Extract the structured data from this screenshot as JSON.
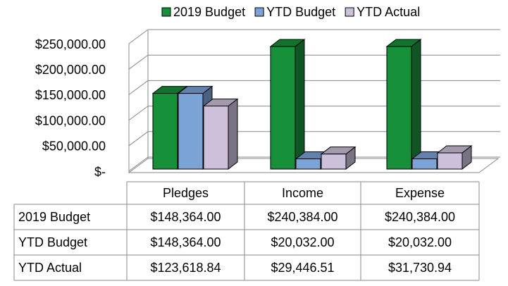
{
  "chart_data": {
    "type": "bar3d",
    "categories": [
      "Pledges",
      "Income",
      "Expense"
    ],
    "series": [
      {
        "name": "2019 Budget",
        "color": "#17903a",
        "values": [
          148364.0,
          240384.0,
          240384.0
        ],
        "value_labels": [
          "$148,364.00",
          "$240,384.00",
          "$240,384.00"
        ]
      },
      {
        "name": "YTD Budget",
        "color": "#7ba3d6",
        "values": [
          148364.0,
          20032.0,
          20032.0
        ],
        "value_labels": [
          "$148,364.00",
          "$20,032.00",
          "$20,032.00"
        ]
      },
      {
        "name": "YTD Actual",
        "color": "#ccc0da",
        "values": [
          123618.84,
          29446.51,
          31730.94
        ],
        "value_labels": [
          "$123,618.84",
          "$29,446.51",
          "$31,730.94"
        ]
      }
    ],
    "ylim": [
      0,
      250000
    ],
    "yticks": [
      {
        "value": 0,
        "label": "$-"
      },
      {
        "value": 50000,
        "label": "$50,000.00"
      },
      {
        "value": 100000,
        "label": "$100,000.00"
      },
      {
        "value": 150000,
        "label": "$150,000.00"
      },
      {
        "value": 200000,
        "label": "$200,000.00"
      },
      {
        "value": 250000,
        "label": "$250,000.00"
      }
    ],
    "grid": true,
    "legend": "top"
  }
}
